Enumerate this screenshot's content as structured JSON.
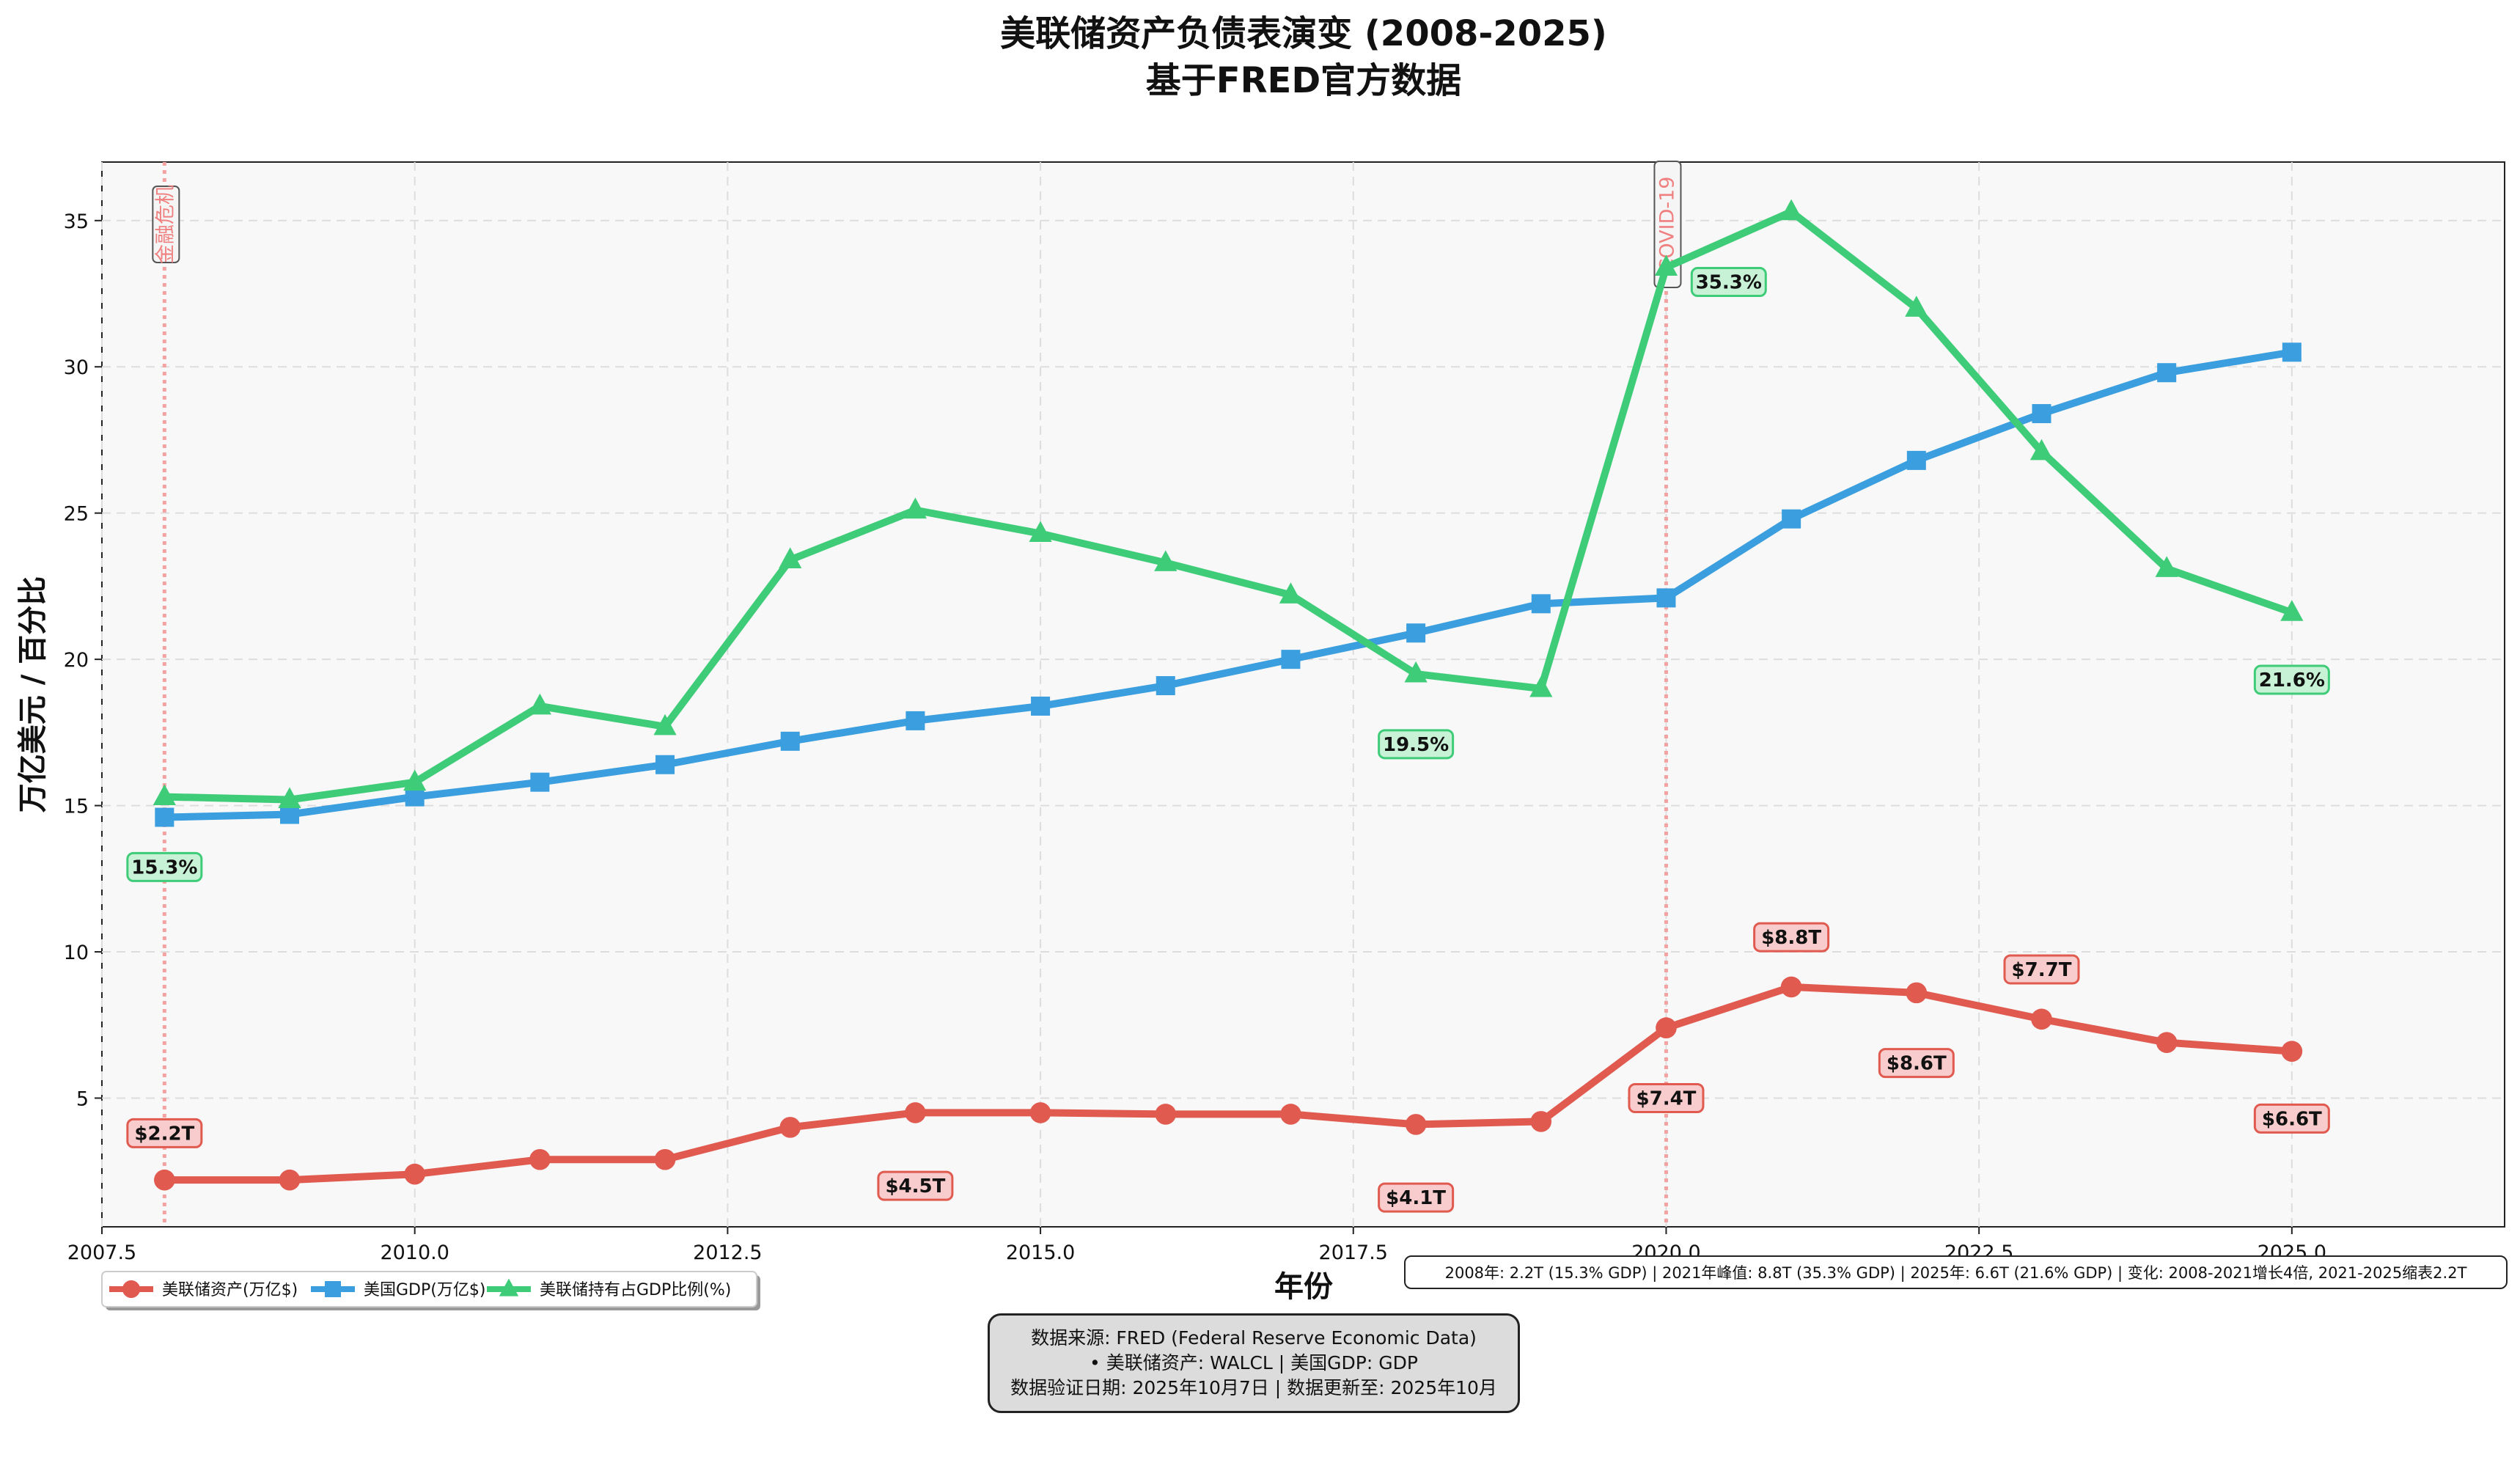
{
  "title_line1": "美联储资产负债表演变 (2008-2025)",
  "title_line2": "基于FRED官方数据",
  "summary_text": "2008年: 2.2T (15.3% GDP) | 2021年峰值: 8.8T (35.3% GDP) | 2025年: 6.6T (21.6% GDP) | 变化: 2008-2021增长4倍, 2021-2025缩表2.2T",
  "source_lines": [
    "数据来源: FRED (Federal Reserve Economic Data)",
    "• 美联储资产: WALCL | 美国GDP: GDP",
    "数据验证日期: 2025年10月7日 | 数据更新至: 2025年10月"
  ],
  "colors": {
    "fed_assets": "#e05a4f",
    "gdp": "#3b9ede",
    "ratio": "#3fcc78",
    "event_line": "#f4a3a3",
    "plot_bg": "#f8f8f8"
  },
  "chart_data": {
    "type": "line",
    "xlabel": "年份",
    "ylabel": "万亿美元 / 百分比",
    "xlim": [
      2007.5,
      2026.7
    ],
    "ylim": [
      0.6,
      37.0
    ],
    "x_ticks": [
      2007.5,
      2010.0,
      2012.5,
      2015.0,
      2017.5,
      2020.0,
      2022.5,
      2025.0
    ],
    "x_tick_labels": [
      "2007.5",
      "2010.0",
      "2012.5",
      "2015.0",
      "2017.5",
      "2020.0",
      "2022.5",
      "2025.0"
    ],
    "y_ticks": [
      5,
      10,
      15,
      20,
      25,
      30,
      35
    ],
    "y_tick_labels": [
      "5",
      "10",
      "15",
      "20",
      "25",
      "30",
      "35"
    ],
    "grid": true,
    "legend_position": "bottom-left",
    "x": [
      2008,
      2009,
      2010,
      2011,
      2012,
      2013,
      2014,
      2015,
      2016,
      2017,
      2018,
      2019,
      2020,
      2021,
      2022,
      2023,
      2024,
      2025
    ],
    "series": [
      {
        "name": "美联储资产(万亿$)",
        "marker": "circle",
        "color": "#e05a4f",
        "values": [
          2.2,
          2.2,
          2.4,
          2.9,
          2.9,
          4.0,
          4.5,
          4.5,
          4.45,
          4.45,
          4.1,
          4.2,
          7.4,
          8.8,
          8.6,
          7.7,
          6.9,
          6.6
        ]
      },
      {
        "name": "美国GDP(万亿$)",
        "marker": "square",
        "color": "#3b9ede",
        "values": [
          14.6,
          14.7,
          15.3,
          15.8,
          16.4,
          17.2,
          17.9,
          18.4,
          19.1,
          20.0,
          20.9,
          21.9,
          22.1,
          24.8,
          26.8,
          28.4,
          29.8,
          30.5
        ]
      },
      {
        "name": "美联储持有占GDP比例(%)",
        "marker": "triangle",
        "color": "#3fcc78",
        "values": [
          15.3,
          15.2,
          15.8,
          18.4,
          17.7,
          23.4,
          25.1,
          24.3,
          23.3,
          22.2,
          19.5,
          19.0,
          33.4,
          35.3,
          32.0,
          27.1,
          23.1,
          21.6
        ]
      }
    ],
    "annotations": [
      {
        "series": 0,
        "x": 2008,
        "text": "$2.2T",
        "ty": 3.8
      },
      {
        "series": 0,
        "x": 2014,
        "text": "$4.5T",
        "ty": 2.0
      },
      {
        "series": 0,
        "x": 2018,
        "text": "$4.1T",
        "ty": 1.6
      },
      {
        "series": 0,
        "x": 2020,
        "text": "$7.4T",
        "ty": 5.0
      },
      {
        "series": 0,
        "x": 2021,
        "text": "$8.8T",
        "ty": 10.5
      },
      {
        "series": 0,
        "x": 2022,
        "text": "$8.6T",
        "ty": 6.2
      },
      {
        "series": 0,
        "x": 2023,
        "text": "$7.7T",
        "ty": 9.4
      },
      {
        "series": 0,
        "x": 2025,
        "text": "$6.6T",
        "ty": 4.3
      },
      {
        "series": 2,
        "x": 2008,
        "text": "15.3%",
        "ty": 12.9
      },
      {
        "series": 2,
        "x": 2018,
        "text": "19.5%",
        "ty": 17.1
      },
      {
        "series": 2,
        "x": 2020.5,
        "text": "35.3%",
        "ty": 32.9
      },
      {
        "series": 2,
        "x": 2025,
        "text": "21.6%",
        "ty": 19.3
      }
    ],
    "events": [
      {
        "x": 2008,
        "label": "金融危机"
      },
      {
        "x": 2020,
        "label": "COVID-19"
      }
    ]
  }
}
